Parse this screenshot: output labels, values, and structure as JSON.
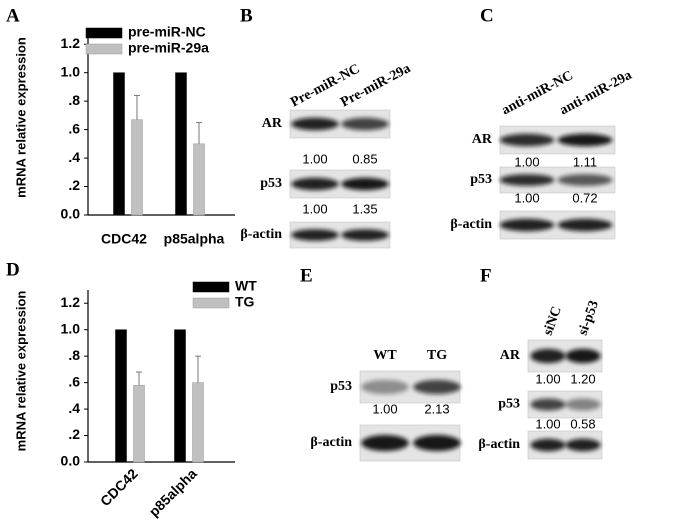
{
  "chart_data": [
    {
      "type": "bar",
      "panel": "A",
      "ylabel": "mRNA relative expression",
      "categories": [
        "CDC42",
        "p85alpha"
      ],
      "series": [
        {
          "name": "pre-miR-NC",
          "color": "#000000",
          "values": [
            1.0,
            1.0
          ]
        },
        {
          "name": "pre-miR-29a",
          "color": "#c0c0c0",
          "values": [
            0.67,
            0.5
          ],
          "errors": [
            0.17,
            0.15
          ]
        }
      ],
      "ylim": [
        0,
        1.3
      ],
      "yticks": [
        {
          "value": 0,
          "label": "0.0"
        },
        {
          "value": 0.2,
          "label": ".2"
        },
        {
          "value": 0.4,
          "label": ".4"
        },
        {
          "value": 0.6,
          "label": ".6"
        },
        {
          "value": 0.8,
          "label": ".8"
        },
        {
          "value": 1.0,
          "label": "1.0"
        },
        {
          "value": 1.2,
          "label": "1.2"
        }
      ]
    },
    {
      "type": "bar",
      "panel": "D",
      "ylabel": "mRNA relative expression",
      "categories": [
        "CDC42",
        "p85alpha"
      ],
      "series": [
        {
          "name": "WT",
          "color": "#000000",
          "values": [
            1.0,
            1.0
          ]
        },
        {
          "name": "TG",
          "color": "#c0c0c0",
          "values": [
            0.58,
            0.6
          ],
          "errors": [
            0.1,
            0.2
          ]
        }
      ],
      "ylim": [
        0,
        1.3
      ],
      "yticks": [
        {
          "value": 0,
          "label": "0.0"
        },
        {
          "value": 0.2,
          "label": ".2"
        },
        {
          "value": 0.4,
          "label": ".4"
        },
        {
          "value": 0.6,
          "label": ".6"
        },
        {
          "value": 0.8,
          "label": ".8"
        },
        {
          "value": 1.0,
          "label": "1.0"
        },
        {
          "value": 1.2,
          "label": "1.2"
        }
      ]
    }
  ],
  "blots": [
    {
      "panel": "B",
      "lanes": [
        "Pre-miR-NC",
        "Pre-miR-29a"
      ],
      "rows": [
        {
          "label": "AR",
          "quant": [
            "1.00",
            "0.85"
          ]
        },
        {
          "label": "p53",
          "quant": [
            "1.00",
            "1.35"
          ]
        },
        {
          "label": "β-actin"
        }
      ]
    },
    {
      "panel": "C",
      "lanes": [
        "anti-miR-NC",
        "anti-miR-29a"
      ],
      "rows": [
        {
          "label": "AR",
          "quant": [
            "1.00",
            "1.11"
          ]
        },
        {
          "label": "p53",
          "quant": [
            "1.00",
            "0.72"
          ]
        },
        {
          "label": "β-actin"
        }
      ]
    },
    {
      "panel": "E",
      "lanes": [
        "WT",
        "TG"
      ],
      "rows": [
        {
          "label": "p53",
          "quant": [
            "1.00",
            "2.13"
          ]
        },
        {
          "label": "β-actin"
        }
      ]
    },
    {
      "panel": "F",
      "lanes": [
        "siNC",
        "si-p53"
      ],
      "rows": [
        {
          "label": "AR",
          "quant": [
            "1.00",
            "1.20"
          ]
        },
        {
          "label": "p53",
          "quant": [
            "1.00",
            "0.58"
          ]
        },
        {
          "label": "β-actin"
        }
      ]
    }
  ]
}
